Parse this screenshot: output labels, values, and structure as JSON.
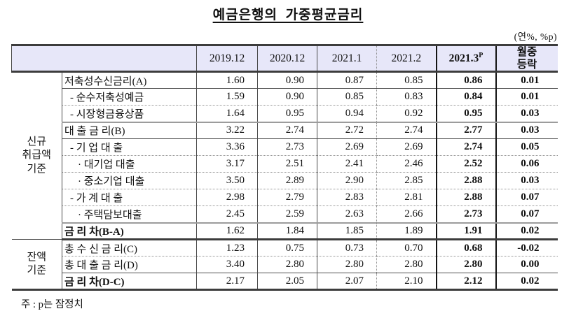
{
  "page": {
    "title": "예금은행의  가중평균금리",
    "unit_note": "(연%, %p)",
    "footnote": "주 : p는 잠정치"
  },
  "table": {
    "col_headers": [
      {
        "label": "2019.12"
      },
      {
        "label": "2020.12"
      },
      {
        "label": "2021.1"
      },
      {
        "label": "2021.2"
      },
      {
        "label": "2021.3",
        "sup": "P"
      },
      {
        "label": "월중\n등락"
      }
    ],
    "groups": [
      {
        "label": "신규\n취급액\n기준"
      },
      {
        "label": "잔액\n기준"
      }
    ],
    "rows": [
      {
        "label": "저축성수신금리(A)",
        "values": [
          "1.60",
          "0.90",
          "0.87",
          "0.85",
          "0.86",
          "0.01"
        ]
      },
      {
        "label": "- 순수저축성예금",
        "values": [
          "1.59",
          "0.90",
          "0.85",
          "0.83",
          "0.84",
          "0.01"
        ]
      },
      {
        "label": "- 시장형금융상품",
        "values": [
          "1.64",
          "0.95",
          "0.94",
          "0.92",
          "0.95",
          "0.03"
        ]
      },
      {
        "label": "대 출 금 리(B)",
        "values": [
          "3.22",
          "2.74",
          "2.72",
          "2.74",
          "2.77",
          "0.03"
        ]
      },
      {
        "label": "- 기 업 대 출",
        "values": [
          "3.36",
          "2.73",
          "2.69",
          "2.69",
          "2.74",
          "0.05"
        ]
      },
      {
        "label": "· 대기업 대출",
        "values": [
          "3.17",
          "2.51",
          "2.41",
          "2.46",
          "2.52",
          "0.06"
        ]
      },
      {
        "label": "· 중소기업 대출",
        "values": [
          "3.50",
          "2.89",
          "2.90",
          "2.85",
          "2.88",
          "0.03"
        ]
      },
      {
        "label": "- 가 계 대 출",
        "values": [
          "2.98",
          "2.79",
          "2.83",
          "2.81",
          "2.88",
          "0.07"
        ]
      },
      {
        "label": "· 주택담보대출",
        "values": [
          "2.45",
          "2.59",
          "2.63",
          "2.66",
          "2.73",
          "0.07"
        ]
      },
      {
        "label": "금 리 차(B-A)",
        "values": [
          "1.62",
          "1.84",
          "1.85",
          "1.89",
          "1.91",
          "0.02"
        ]
      },
      {
        "label": "총 수 신 금 리(C)",
        "values": [
          "1.23",
          "0.75",
          "0.73",
          "0.70",
          "0.68",
          "-0.02"
        ]
      },
      {
        "label": "총 대 출 금 리(D)",
        "values": [
          "3.40",
          "2.80",
          "2.80",
          "2.80",
          "2.80",
          "0.00"
        ]
      },
      {
        "label": "금 리 차(D-C)",
        "values": [
          "2.17",
          "2.05",
          "2.07",
          "2.10",
          "2.12",
          "0.02"
        ]
      }
    ]
  }
}
